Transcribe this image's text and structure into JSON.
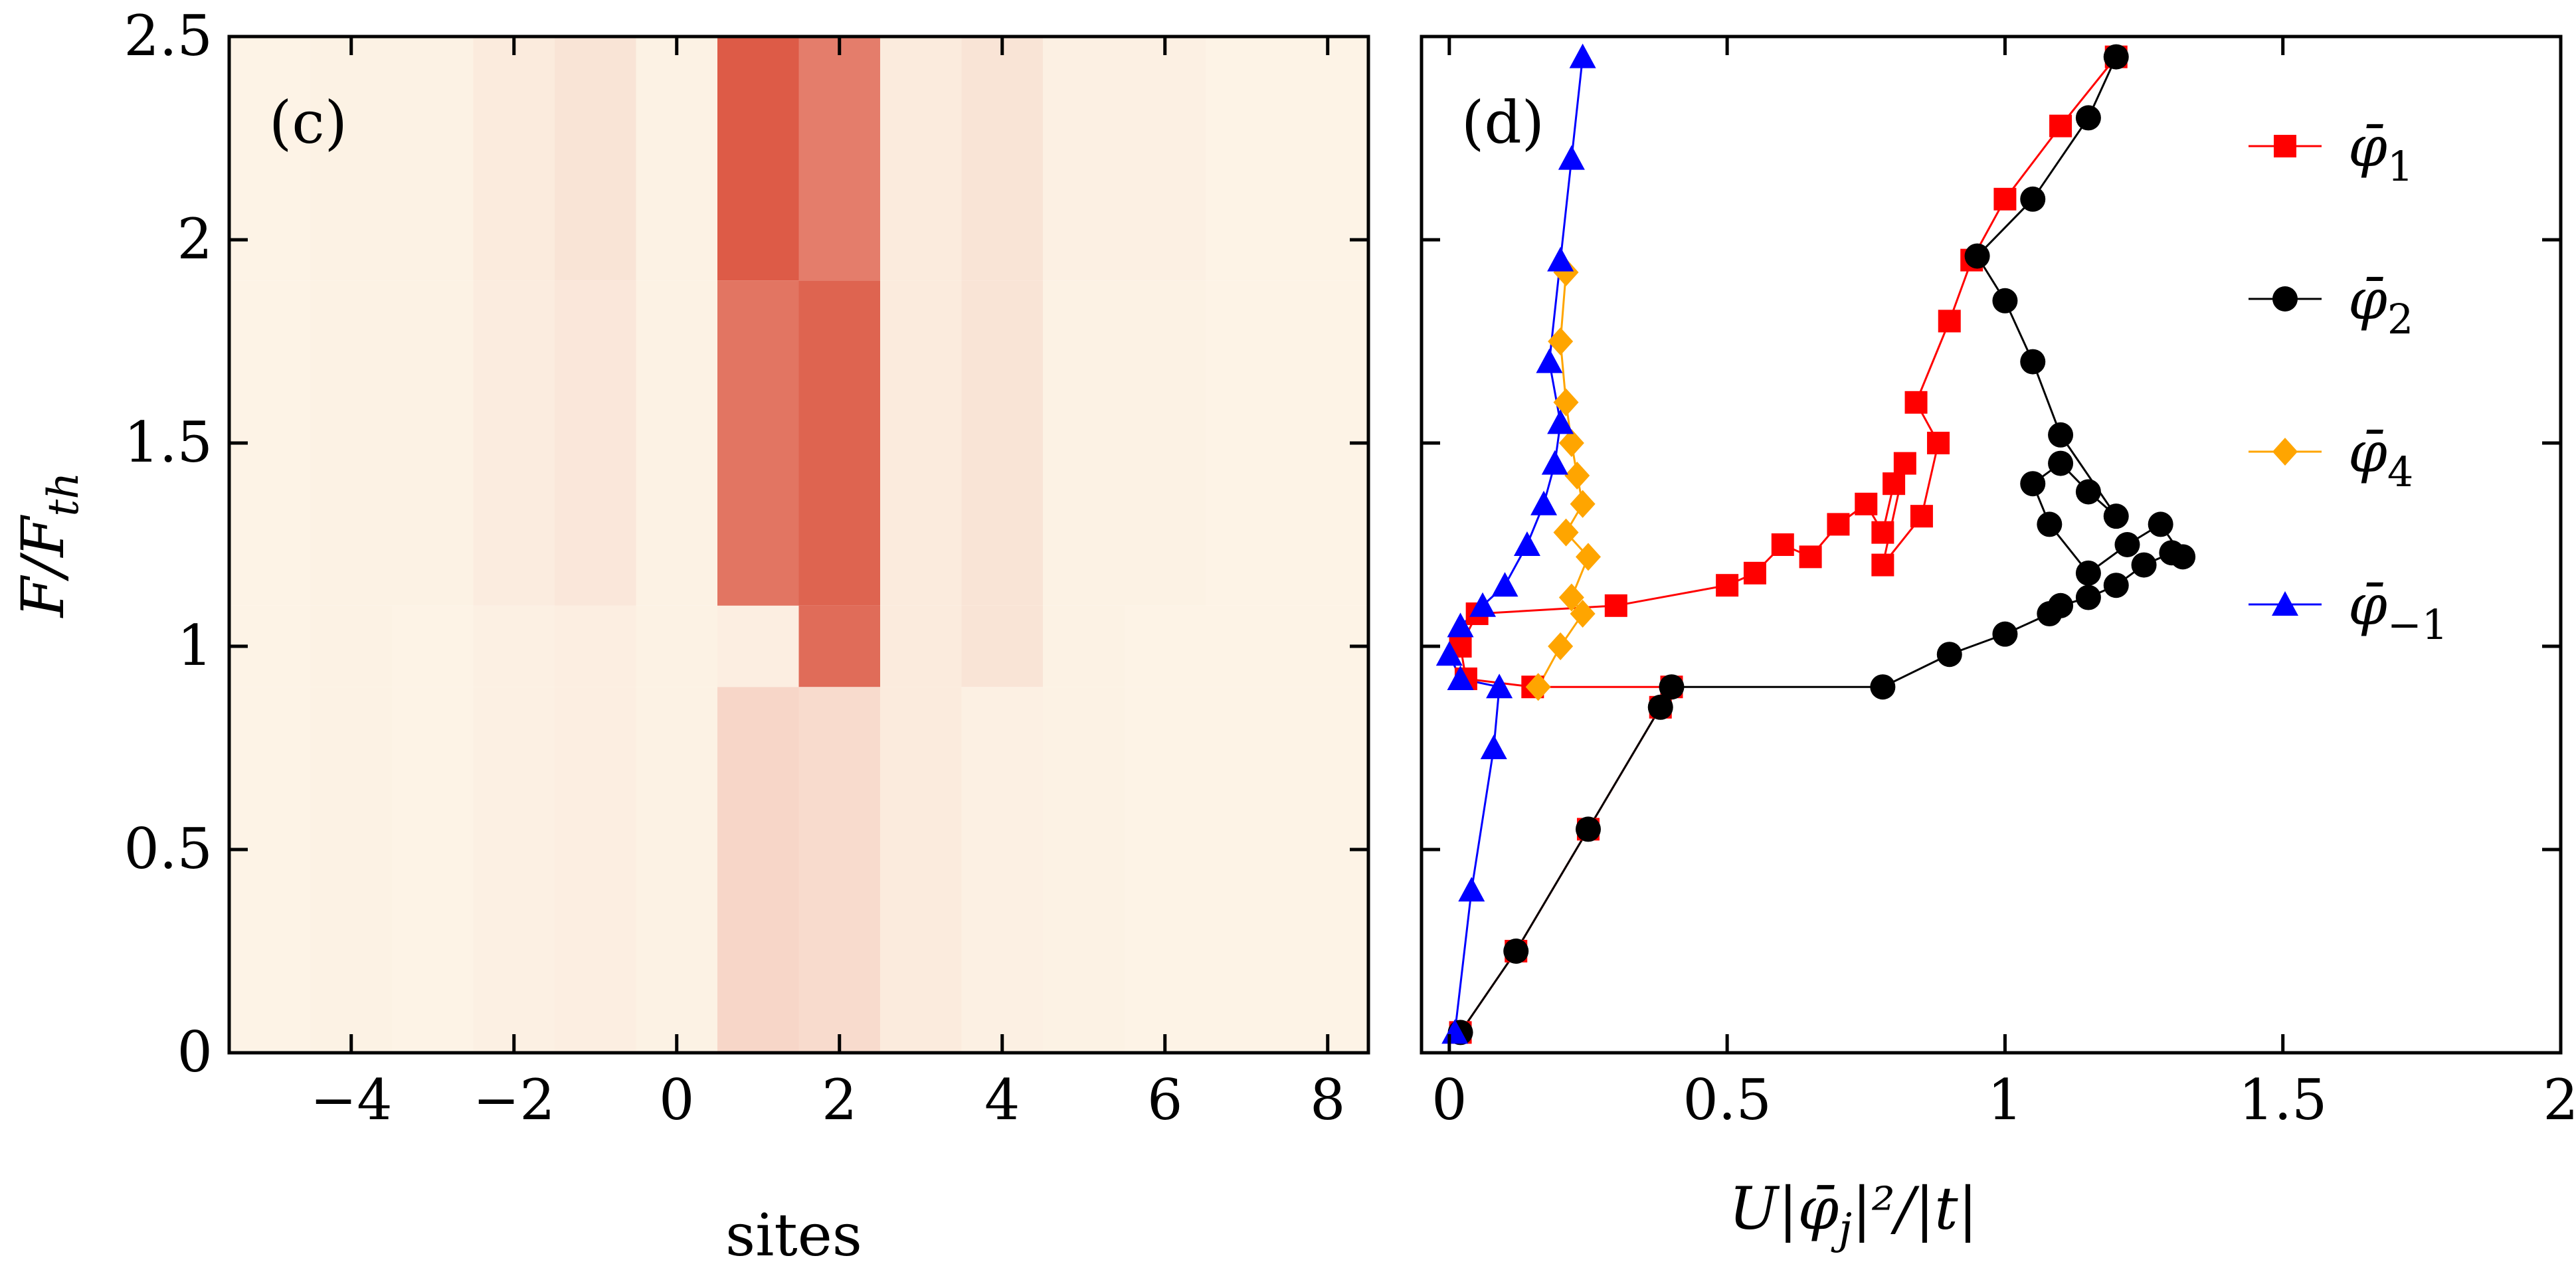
{
  "chart_data": [
    {
      "type": "heatmap",
      "panel_label": "(c)",
      "xlabel": "sites",
      "ylabel": "F/F_th",
      "ylabel_main": "F/F",
      "ylabel_sub": "th",
      "xlim": [
        -5.5,
        8.5
      ],
      "ylim": [
        0,
        2.5
      ],
      "xticks": [
        -4,
        -2,
        0,
        2,
        4,
        6,
        8
      ],
      "xtick_labels": [
        "−4",
        "−2",
        "0",
        "2",
        "4",
        "6",
        "8"
      ],
      "yticks": [
        0,
        0.5,
        1,
        1.5,
        2,
        2.5
      ],
      "ytick_labels": [
        "0",
        "0.5",
        "1",
        "1.5",
        "2",
        "2.5"
      ],
      "color_low": "#fdf5e8",
      "color_high": "#d94a35",
      "sites": [
        -5,
        -4,
        -3,
        -2,
        -1,
        0,
        1,
        2,
        3,
        4,
        5,
        6,
        7,
        8
      ],
      "bands": [
        {
          "F_range": [
            0.0,
            0.9
          ],
          "intensities": [
            0.01,
            0.02,
            0.01,
            0.03,
            0.04,
            0.02,
            0.18,
            0.15,
            0.06,
            0.03,
            0.02,
            0.01,
            0.01,
            0.01
          ]
        },
        {
          "F_range": [
            0.9,
            1.1
          ],
          "intensities": [
            0.01,
            0.02,
            0.01,
            0.03,
            0.04,
            0.02,
            0.04,
            0.8,
            0.06,
            0.1,
            0.02,
            0.01,
            0.01,
            0.01
          ]
        },
        {
          "F_range": [
            1.1,
            1.9
          ],
          "intensities": [
            0.01,
            0.02,
            0.02,
            0.05,
            0.08,
            0.02,
            0.75,
            0.85,
            0.06,
            0.1,
            0.02,
            0.02,
            0.01,
            0.01
          ]
        },
        {
          "F_range": [
            1.9,
            2.5
          ],
          "intensities": [
            0.01,
            0.02,
            0.02,
            0.06,
            0.1,
            0.02,
            0.9,
            0.7,
            0.06,
            0.1,
            0.03,
            0.03,
            0.01,
            0.01
          ]
        }
      ]
    },
    {
      "type": "scatter",
      "panel_label": "(d)",
      "xlabel": "U|φ̄_j|²/|t|",
      "xlabel_text": "U|φ̄",
      "xlabel_sub": "j",
      "xlabel_tail": "|²/|t|",
      "xlim": [
        -0.05,
        2.0
      ],
      "ylim": [
        0,
        2.5
      ],
      "xticks": [
        0,
        0.5,
        1,
        1.5,
        2
      ],
      "xtick_labels": [
        "0",
        "0.5",
        "1",
        "1.5",
        "2"
      ],
      "yticks": [
        0,
        0.5,
        1,
        1.5,
        2,
        2.5
      ],
      "series": [
        {
          "name": "φ̄_1",
          "label_main": "φ̄",
          "label_sub": "1",
          "color": "#ff0000",
          "marker": "square",
          "x": [
            0.02,
            0.12,
            0.25,
            0.38,
            0.4,
            0.15,
            0.03,
            0.02,
            0.05,
            0.3,
            0.5,
            0.55,
            0.6,
            0.65,
            0.7,
            0.75,
            0.78,
            0.8,
            0.82,
            0.78,
            0.85,
            0.88,
            0.84,
            0.9,
            0.94,
            1.0,
            1.1,
            1.2
          ],
          "y": [
            0.05,
            0.25,
            0.55,
            0.85,
            0.9,
            0.9,
            0.92,
            1.0,
            1.08,
            1.1,
            1.15,
            1.18,
            1.25,
            1.22,
            1.3,
            1.35,
            1.28,
            1.4,
            1.45,
            1.2,
            1.32,
            1.5,
            1.6,
            1.8,
            1.95,
            2.1,
            2.28,
            2.45
          ]
        },
        {
          "name": "φ̄_2",
          "label_main": "φ̄",
          "label_sub": "2",
          "color": "#000000",
          "marker": "circle",
          "x": [
            0.02,
            0.12,
            0.25,
            0.38,
            0.4,
            0.78,
            0.9,
            1.0,
            1.08,
            1.1,
            1.15,
            1.2,
            1.25,
            1.3,
            1.32,
            1.28,
            1.22,
            1.15,
            1.08,
            1.05,
            1.1,
            1.15,
            1.2,
            1.1,
            1.05,
            1.0,
            0.95,
            1.05,
            1.15,
            1.2
          ],
          "y": [
            0.05,
            0.25,
            0.55,
            0.85,
            0.9,
            0.9,
            0.98,
            1.03,
            1.08,
            1.1,
            1.12,
            1.15,
            1.2,
            1.23,
            1.22,
            1.3,
            1.25,
            1.18,
            1.3,
            1.4,
            1.45,
            1.38,
            1.32,
            1.52,
            1.7,
            1.85,
            1.96,
            2.1,
            2.3,
            2.45
          ]
        },
        {
          "name": "φ̄_4",
          "label_main": "φ̄",
          "label_sub": "4",
          "color": "#ffa500",
          "marker": "diamond",
          "x": [
            0.16,
            0.2,
            0.24,
            0.22,
            0.25,
            0.21,
            0.24,
            0.23,
            0.22,
            0.21,
            0.2,
            0.21
          ],
          "y": [
            0.9,
            1.0,
            1.08,
            1.12,
            1.22,
            1.28,
            1.35,
            1.42,
            1.5,
            1.6,
            1.75,
            1.92
          ]
        },
        {
          "name": "φ̄_-1",
          "label_main": "φ̄",
          "label_sub": "−1",
          "color": "#0000ff",
          "marker": "triangle",
          "x": [
            0.01,
            0.04,
            0.08,
            0.09,
            0.02,
            0.0,
            0.02,
            0.06,
            0.1,
            0.14,
            0.17,
            0.19,
            0.2,
            0.18,
            0.2,
            0.22,
            0.24
          ],
          "y": [
            0.05,
            0.4,
            0.75,
            0.9,
            0.92,
            0.98,
            1.05,
            1.1,
            1.15,
            1.25,
            1.35,
            1.45,
            1.55,
            1.7,
            1.95,
            2.2,
            2.45
          ]
        }
      ]
    }
  ]
}
